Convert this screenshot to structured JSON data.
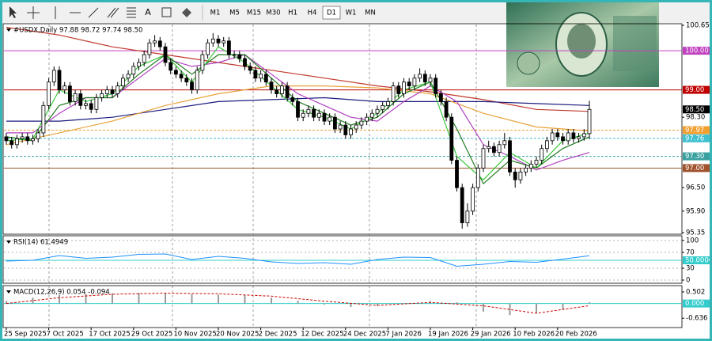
{
  "toolbar": {
    "text_tool": "A",
    "timeframes": [
      "M1",
      "M5",
      "M15",
      "M30",
      "H1",
      "H4",
      "D1",
      "W1",
      "MN"
    ],
    "active": "D1"
  },
  "chart_data": [
    {
      "type": "candlestick",
      "title": "#USDX,Daily  97.88 98.72 97.74 98.50",
      "categories": [
        "25 Sep 2025",
        null,
        null,
        null,
        null,
        null,
        null,
        null,
        "7 Oct 2025",
        null,
        null,
        null,
        null,
        null,
        null,
        null,
        "17 Oct 2025",
        null,
        null,
        null,
        null,
        null,
        null,
        null,
        "29 Oct 2025",
        null,
        null,
        null,
        null,
        null,
        null,
        null,
        "10 Nov 2025",
        null,
        null,
        null,
        null,
        null,
        null,
        null,
        "20 Nov 2025",
        null,
        null,
        null,
        null,
        null,
        null,
        null,
        "2 Dec 2025",
        null,
        null,
        null,
        null,
        null,
        null,
        null,
        "12 Dec 2025",
        null,
        null,
        null,
        null,
        null,
        null,
        null,
        "24 Dec 2025",
        null,
        null,
        null,
        null,
        null,
        null,
        null,
        "7 Jan 2026",
        null,
        null,
        null,
        null,
        null,
        null,
        null,
        "19 Jan 2026",
        null,
        null,
        null,
        null,
        null,
        null,
        null,
        "29 Jan 2026",
        null,
        null,
        null,
        null,
        null,
        null,
        null,
        "10 Feb 2026",
        null,
        null,
        null,
        null,
        null,
        null,
        null,
        "20 Feb 2026",
        null,
        null,
        null,
        null,
        null,
        null
      ],
      "open": [
        97.8,
        97.7,
        97.6,
        97.75,
        97.8,
        97.7,
        97.75,
        97.9,
        98.6,
        99.2,
        99.5,
        99.0,
        99.1,
        98.7,
        98.9,
        98.6,
        98.65,
        98.5,
        98.8,
        98.9,
        99.0,
        98.9,
        99.1,
        99.3,
        99.4,
        99.6,
        99.7,
        99.9,
        100.2,
        100.25,
        100.1,
        99.7,
        99.5,
        99.4,
        99.3,
        99.2,
        99.0,
        99.5,
        99.9,
        100.2,
        100.3,
        100.2,
        100.25,
        99.9,
        99.9,
        99.8,
        99.6,
        99.5,
        99.3,
        99.4,
        99.2,
        99.0,
        98.9,
        99.1,
        98.8,
        98.7,
        98.3,
        98.4,
        98.5,
        98.3,
        98.4,
        98.2,
        98.3,
        98.0,
        98.1,
        97.85,
        98.0,
        98.1,
        98.2,
        98.3,
        98.4,
        98.5,
        98.6,
        98.7,
        99.1,
        98.9,
        99.2,
        99.1,
        99.3,
        99.4,
        99.2,
        99.3,
        98.9,
        98.7,
        98.3,
        97.2,
        96.5,
        95.6,
        95.9,
        96.5,
        97.0,
        97.5,
        97.55,
        97.4,
        97.6,
        97.7,
        96.9,
        96.7,
        96.9,
        97.0,
        97.1,
        97.2,
        97.5,
        97.7,
        97.9,
        97.8,
        97.7,
        97.9,
        97.75,
        97.8,
        97.88
      ],
      "high": [
        97.9,
        97.8,
        97.85,
        97.9,
        97.9,
        97.85,
        98.0,
        98.7,
        99.3,
        99.6,
        99.6,
        99.2,
        99.2,
        99.0,
        99.0,
        98.75,
        98.75,
        98.9,
        99.0,
        99.1,
        99.1,
        99.2,
        99.4,
        99.5,
        99.7,
        99.8,
        100.0,
        100.3,
        100.4,
        100.35,
        100.2,
        99.8,
        99.6,
        99.5,
        99.4,
        99.3,
        99.6,
        100.0,
        100.3,
        100.45,
        100.4,
        100.35,
        100.35,
        100.0,
        100.0,
        99.9,
        99.7,
        99.6,
        99.5,
        99.5,
        99.3,
        99.1,
        99.2,
        99.2,
        98.9,
        98.8,
        98.5,
        98.6,
        98.6,
        98.5,
        98.5,
        98.4,
        98.4,
        98.2,
        98.2,
        98.1,
        98.2,
        98.3,
        98.4,
        98.5,
        98.6,
        98.7,
        98.8,
        99.2,
        99.2,
        99.3,
        99.3,
        99.4,
        99.55,
        99.5,
        99.4,
        99.4,
        99.0,
        98.8,
        98.4,
        97.3,
        96.6,
        96.1,
        96.6,
        97.1,
        97.6,
        97.7,
        97.65,
        97.7,
        97.9,
        97.8,
        97.0,
        97.0,
        97.1,
        97.2,
        97.3,
        97.6,
        97.8,
        98.0,
        98.0,
        97.9,
        98.0,
        98.0,
        97.9,
        98.0,
        98.72
      ],
      "low": [
        97.6,
        97.5,
        97.5,
        97.65,
        97.6,
        97.6,
        97.65,
        97.8,
        98.5,
        99.1,
        98.9,
        98.9,
        98.6,
        98.6,
        98.5,
        98.5,
        98.4,
        98.4,
        98.7,
        98.8,
        98.8,
        98.8,
        99.0,
        99.2,
        99.3,
        99.5,
        99.6,
        99.8,
        100.1,
        100.0,
        99.6,
        99.4,
        99.3,
        99.2,
        99.1,
        98.9,
        98.9,
        99.4,
        99.8,
        100.1,
        100.1,
        100.1,
        99.8,
        99.8,
        99.7,
        99.5,
        99.4,
        99.2,
        99.2,
        99.1,
        98.9,
        98.8,
        98.8,
        98.7,
        98.6,
        98.2,
        98.2,
        98.3,
        98.2,
        98.2,
        98.1,
        98.1,
        97.9,
        97.9,
        97.75,
        97.75,
        97.9,
        98.0,
        98.1,
        98.2,
        98.3,
        98.4,
        98.5,
        98.6,
        98.8,
        98.8,
        99.0,
        99.0,
        99.2,
        99.1,
        99.1,
        98.8,
        98.6,
        98.2,
        97.1,
        96.4,
        95.45,
        95.5,
        95.8,
        96.4,
        96.9,
        97.4,
        97.3,
        97.3,
        97.5,
        96.8,
        96.5,
        96.6,
        96.8,
        96.9,
        97.0,
        97.1,
        97.4,
        97.6,
        97.7,
        97.6,
        97.6,
        97.65,
        97.65,
        97.7,
        97.74
      ],
      "close": [
        97.7,
        97.6,
        97.75,
        97.8,
        97.7,
        97.75,
        97.9,
        98.6,
        99.2,
        99.5,
        99.0,
        99.1,
        98.7,
        98.9,
        98.6,
        98.65,
        98.5,
        98.8,
        98.9,
        99.0,
        98.9,
        99.1,
        99.3,
        99.4,
        99.6,
        99.7,
        99.9,
        100.2,
        100.25,
        100.1,
        99.7,
        99.5,
        99.4,
        99.3,
        99.2,
        99.0,
        99.5,
        99.9,
        100.2,
        100.3,
        100.2,
        100.25,
        99.9,
        99.9,
        99.8,
        99.6,
        99.5,
        99.3,
        99.4,
        99.2,
        99.0,
        98.9,
        99.1,
        98.8,
        98.7,
        98.3,
        98.4,
        98.5,
        98.3,
        98.4,
        98.2,
        98.3,
        98.0,
        98.1,
        97.85,
        98.0,
        98.1,
        98.2,
        98.3,
        98.4,
        98.5,
        98.6,
        98.7,
        99.1,
        98.9,
        99.2,
        99.1,
        99.3,
        99.4,
        99.2,
        99.3,
        98.9,
        98.7,
        98.3,
        97.2,
        96.5,
        95.6,
        95.9,
        96.5,
        97.0,
        97.5,
        97.55,
        97.4,
        97.6,
        97.7,
        96.9,
        96.7,
        96.9,
        97.0,
        97.1,
        97.2,
        97.5,
        97.7,
        97.9,
        97.8,
        97.7,
        97.9,
        97.75,
        97.8,
        97.88,
        98.5
      ],
      "color": "#000000",
      "ylim": [
        95.31,
        100.67
      ],
      "yticks": [
        100.65,
        {
          "value": 98.3,
          "label": "98.30"
        },
        {
          "value": 96.5,
          "label": "96.50"
        },
        {
          "value": 95.9,
          "label": "95.90"
        },
        95.35
      ],
      "levels": [
        {
          "value": 100,
          "label": "100.00",
          "color": "#c040c0",
          "style": "solid"
        },
        {
          "value": 99,
          "label": "99.00",
          "color": "#c00000",
          "style": "solid"
        },
        {
          "value": 98.5,
          "label": "98.50",
          "color": "#000000",
          "style": "none"
        },
        {
          "value": 97.97,
          "label": "97.97",
          "color": "#f0a030",
          "style": "dashed"
        },
        {
          "value": 97.76,
          "label": "97.76",
          "color": "#40c0d0",
          "style": "dashed"
        },
        {
          "value": 97.3,
          "label": "97.30",
          "color": "#3aa0a0",
          "style": "dashed"
        },
        {
          "value": 97,
          "label": "97.00",
          "color": "#a0522d",
          "style": "solid"
        }
      ],
      "series": [
        {
          "color": "#c0392b",
          "x": [
            0,
            10,
            20,
            30,
            40,
            50,
            60,
            70,
            80,
            90,
            100,
            110
          ],
          "values": [
            100.6,
            100.4,
            100.1,
            99.9,
            99.7,
            99.5,
            99.3,
            99.1,
            98.95,
            98.75,
            98.5,
            98.45
          ]
        },
        {
          "color": "#1a1a80",
          "x": [
            0,
            10,
            20,
            30,
            40,
            50,
            60,
            70,
            80,
            90,
            100,
            110
          ],
          "values": [
            98.2,
            98.2,
            98.3,
            98.5,
            98.7,
            98.75,
            98.8,
            98.7,
            98.7,
            98.7,
            98.65,
            98.6
          ]
        },
        {
          "color": "#e8a33a",
          "x": [
            0,
            10,
            20,
            30,
            40,
            50,
            60,
            70,
            80,
            90,
            100,
            110
          ],
          "values": [
            97.6,
            97.9,
            98.2,
            98.6,
            98.9,
            99.1,
            99.1,
            99.05,
            98.9,
            98.4,
            98.05,
            97.95
          ]
        },
        {
          "color": "#b040c0",
          "x": [
            0,
            5,
            10,
            15,
            20,
            25,
            30,
            35,
            40,
            45,
            50,
            55,
            60,
            65,
            70,
            75,
            80,
            85,
            90,
            95,
            100,
            105,
            110
          ],
          "values": [
            97.9,
            97.9,
            98.4,
            98.8,
            98.8,
            99.3,
            99.8,
            99.6,
            99.7,
            99.9,
            99.4,
            98.9,
            98.6,
            98.3,
            98.2,
            98.7,
            99.1,
            98.7,
            97.6,
            97.3,
            96.95,
            97.2,
            97.4
          ]
        },
        {
          "color": "#1e7a1e",
          "x": [
            0,
            5,
            10,
            15,
            20,
            25,
            30,
            35,
            40,
            45,
            50,
            55,
            60,
            65,
            70,
            75,
            80,
            85,
            90,
            95,
            100,
            105,
            110
          ],
          "values": [
            97.8,
            97.7,
            98.6,
            98.8,
            98.8,
            99.4,
            99.9,
            99.4,
            99.9,
            99.9,
            99.3,
            98.7,
            98.4,
            98.1,
            98.3,
            98.9,
            99.2,
            98.0,
            96.6,
            97.2,
            97.0,
            97.5,
            97.8
          ]
        },
        {
          "color": "#3cc83c",
          "x": [
            0,
            5,
            10,
            15,
            20,
            25,
            30,
            35,
            40,
            45,
            50,
            55,
            60,
            65,
            70,
            75,
            80,
            85,
            90,
            95,
            100,
            105,
            110
          ],
          "values": [
            97.7,
            97.75,
            99.0,
            98.7,
            98.9,
            99.6,
            99.9,
            99.2,
            100.1,
            99.7,
            99.1,
            98.5,
            98.3,
            98.0,
            98.4,
            99.0,
            99.2,
            97.3,
            96.7,
            97.4,
            97.0,
            97.7,
            97.9
          ]
        }
      ]
    },
    {
      "type": "line",
      "title": "RSI(14) 61.4949",
      "x": [
        0,
        5,
        10,
        15,
        20,
        25,
        30,
        35,
        40,
        45,
        50,
        55,
        60,
        65,
        70,
        75,
        80,
        85,
        90,
        95,
        100,
        105,
        110
      ],
      "values": [
        48,
        50,
        62,
        55,
        58,
        65,
        66,
        52,
        60,
        55,
        46,
        42,
        44,
        40,
        52,
        58,
        57,
        35,
        40,
        47,
        45,
        53,
        61.4949
      ],
      "color": "#1e90ff",
      "ylim": [
        -8,
        110
      ],
      "yticks": [
        100,
        70,
        30,
        0
      ],
      "grid": true,
      "levels": [
        {
          "value": 50,
          "label": "50.0000",
          "color": "#33cccc",
          "style": "solid"
        }
      ]
    },
    {
      "type": "bar",
      "title": "MACD(12,26,9) 0.054 -0.094",
      "x": [
        0,
        5,
        10,
        15,
        20,
        25,
        30,
        35,
        40,
        45,
        50,
        55,
        60,
        65,
        70,
        75,
        80,
        85,
        90,
        95,
        100,
        105,
        110
      ],
      "values": [
        0.1,
        0.25,
        0.38,
        0.42,
        0.44,
        0.46,
        0.45,
        0.4,
        0.38,
        0.36,
        0.25,
        0.12,
        -0.05,
        -0.15,
        -0.1,
        0,
        0.1,
        0.05,
        -0.35,
        -0.5,
        -0.4,
        -0.25,
        0.054
      ],
      "color": "#9a9a9a",
      "series": [
        {
          "color": "#cc0000",
          "style": "dashed",
          "x": [
            0,
            10,
            20,
            30,
            40,
            50,
            60,
            70,
            80,
            90,
            100,
            110
          ],
          "values": [
            0,
            0.25,
            0.4,
            0.45,
            0.42,
            0.32,
            0.1,
            -0.08,
            0.05,
            -0.1,
            -0.42,
            -0.094
          ]
        }
      ],
      "ylim": [
        -1.04,
        0.74
      ],
      "yticks": [
        0.502,
        -0.636
      ],
      "levels": [
        {
          "value": 0,
          "label": "0.000",
          "color": "#33cccc",
          "style": "solid"
        }
      ]
    }
  ]
}
